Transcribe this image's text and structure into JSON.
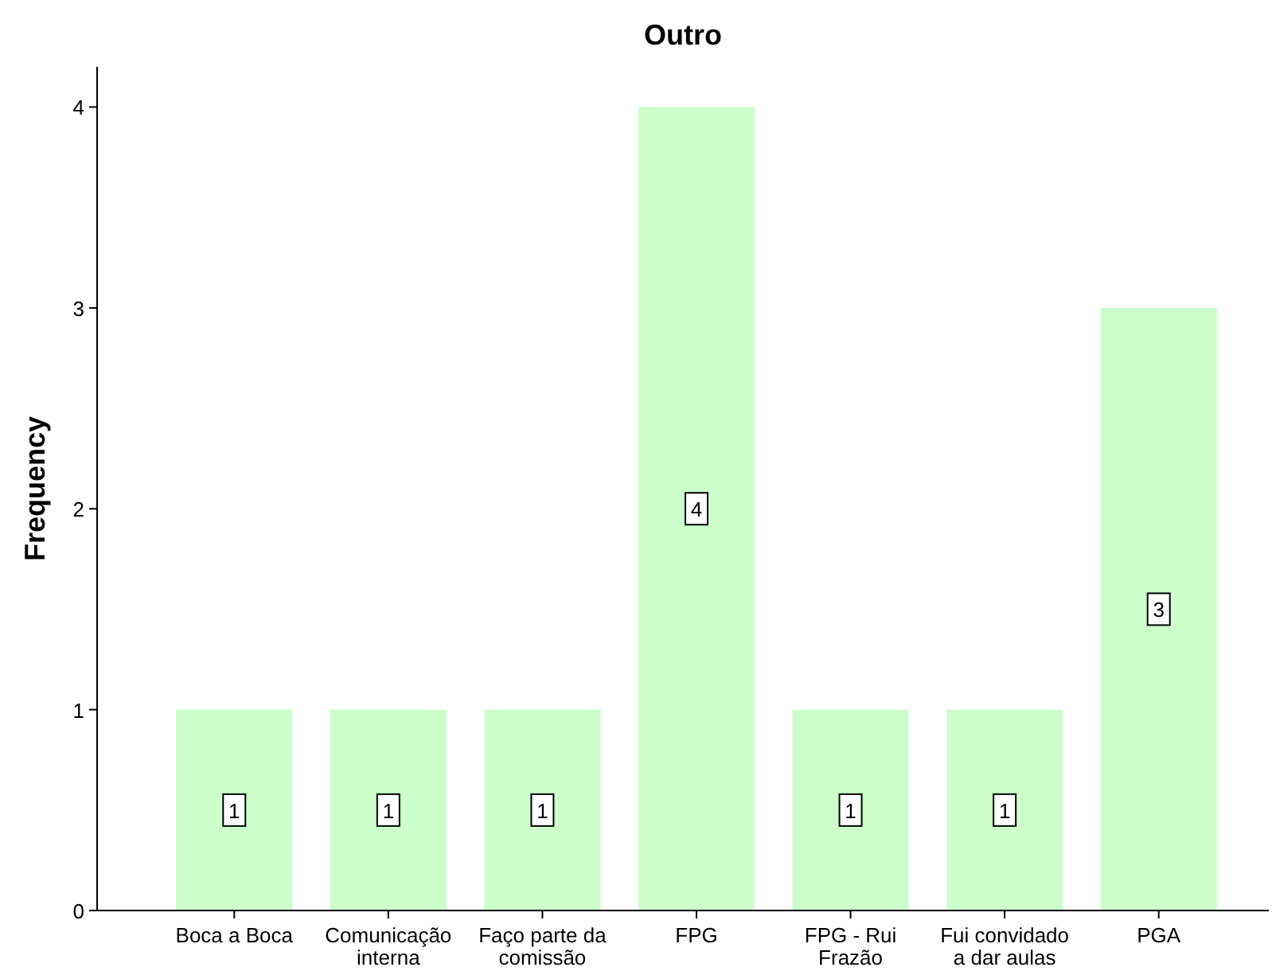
{
  "chart_data": {
    "type": "bar",
    "title": "Outro",
    "ylabel": "Frequency",
    "categories": [
      "Boca a Boca",
      "Comunicação interna",
      "Faço parte da comissão",
      "FPG",
      "FPG - Rui Frazão",
      "Fui convidado a dar aulas",
      "PGA"
    ],
    "values": [
      1,
      1,
      1,
      4,
      1,
      1,
      3
    ],
    "color": "#ccffcc",
    "ylim": [
      0,
      4.2
    ],
    "yticks": [
      0,
      1,
      2,
      3,
      4
    ],
    "data_labels": true
  }
}
